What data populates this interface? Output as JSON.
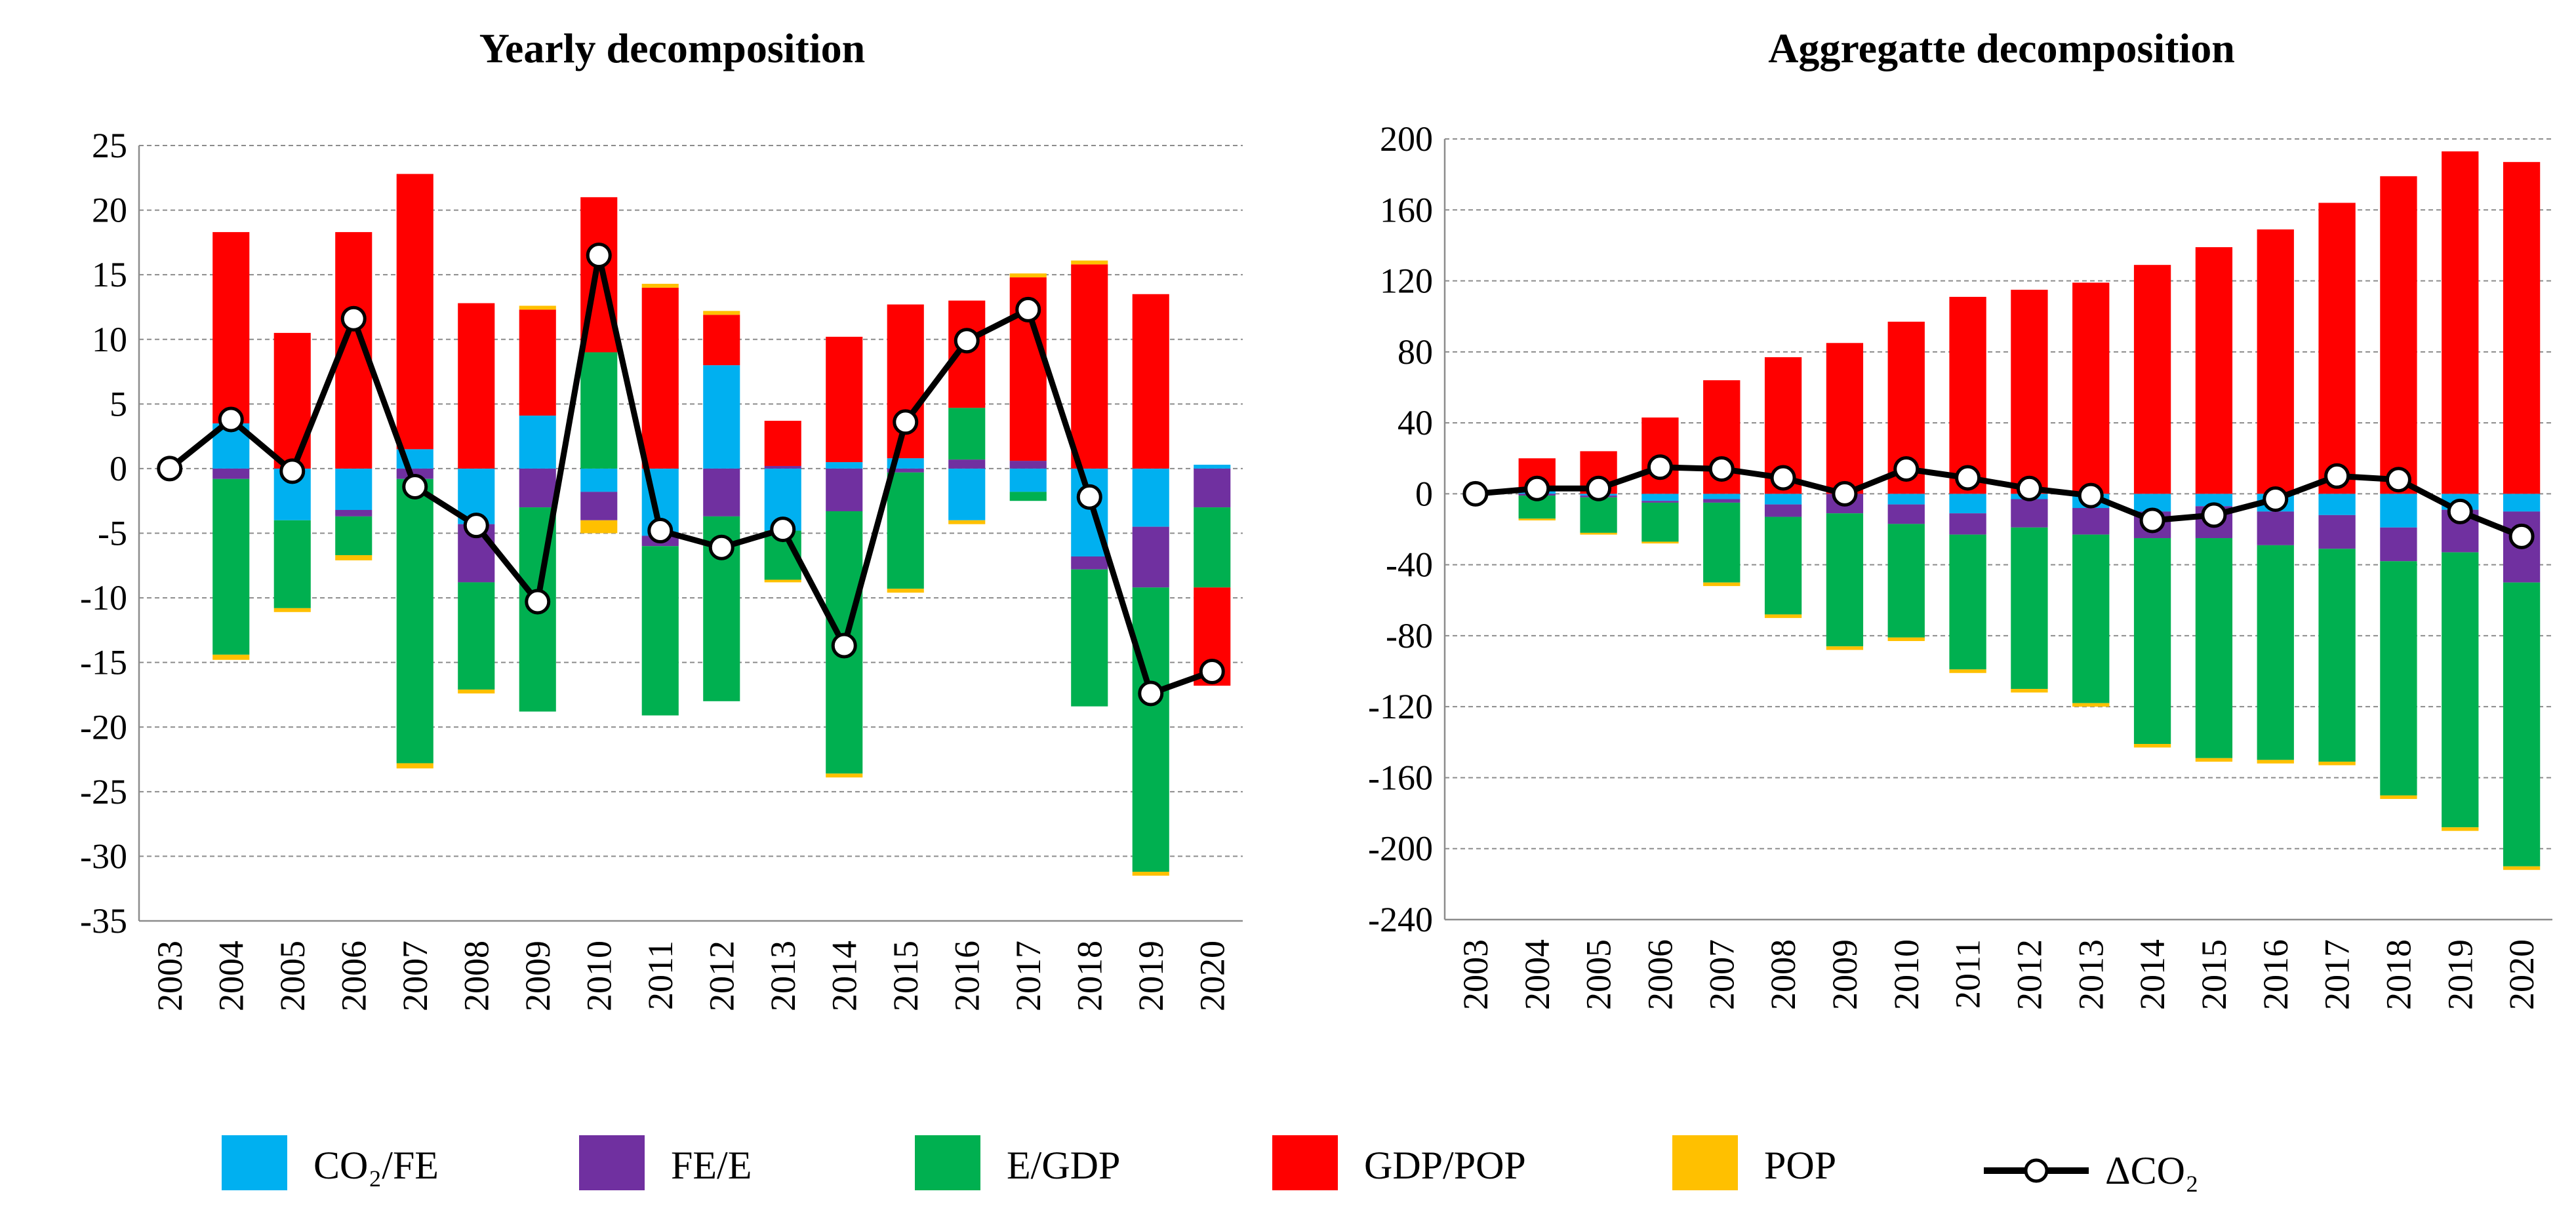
{
  "legend": {
    "items": [
      {
        "key": "co2fe",
        "label": "CO₂/FE",
        "color": "#00B0F0"
      },
      {
        "key": "fee",
        "label": "FE/E",
        "color": "#7030A0"
      },
      {
        "key": "egdp",
        "label": "E/GDP",
        "color": "#00B050"
      },
      {
        "key": "gdppop",
        "label": "GDP/POP",
        "color": "#FF0000"
      },
      {
        "key": "pop",
        "label": "POP",
        "color": "#FFC000"
      },
      {
        "key": "dco2",
        "label": "ΔCO₂",
        "color": "#000000"
      }
    ]
  },
  "chart_data": [
    {
      "type": "bar",
      "stacked": true,
      "title": "Yearly decomposition",
      "xlabel": "",
      "ylabel": "",
      "ylim": [
        -35,
        25
      ],
      "yticks": [
        25,
        20,
        15,
        10,
        5,
        0,
        -5,
        -10,
        -15,
        -20,
        -25,
        -30,
        -35
      ],
      "grid": true,
      "categories": [
        "2003",
        "2004",
        "2005",
        "2006",
        "2007",
        "2008",
        "2009",
        "2010",
        "2011",
        "2012",
        "2013",
        "2014",
        "2015",
        "2016",
        "2017",
        "2018",
        "2019",
        "2020"
      ],
      "series": [
        {
          "name": "CO₂/FE",
          "key": "co2fe",
          "values": [
            0,
            3.5,
            -4,
            -3.2,
            1.5,
            -4.3,
            4.1,
            -1.8,
            -5.2,
            8.0,
            -4.8,
            0.5,
            0.8,
            -4.0,
            -1.8,
            -6.8,
            -4.5,
            0.3
          ]
        },
        {
          "name": "FE/E",
          "key": "fee",
          "values": [
            0,
            -0.8,
            0,
            -0.5,
            -0.8,
            -4.5,
            -3.0,
            -2.2,
            -0.8,
            -3.7,
            0.2,
            -3.3,
            -0.3,
            0.7,
            0.6,
            -1.0,
            -4.7,
            -3.0
          ]
        },
        {
          "name": "E/GDP",
          "key": "egdp",
          "values": [
            0,
            -13.6,
            -6.8,
            -3.0,
            -22.0,
            -8.3,
            -15.8,
            9.0,
            -13.1,
            -14.3,
            -3.8,
            -20.3,
            -9.0,
            4.0,
            -0.7,
            -10.6,
            -22.0,
            -6.2
          ]
        },
        {
          "name": "GDP/POP",
          "key": "gdppop",
          "values": [
            0,
            14.8,
            10.5,
            18.3,
            21.3,
            12.8,
            8.2,
            12.0,
            14.0,
            3.9,
            3.5,
            9.7,
            11.9,
            8.3,
            14.2,
            15.8,
            13.5,
            -7.6
          ]
        },
        {
          "name": "POP",
          "key": "pop",
          "values": [
            0,
            -0.4,
            -0.3,
            -0.4,
            -0.4,
            -0.3,
            0.3,
            -1.0,
            0.3,
            0.3,
            -0.2,
            -0.3,
            -0.3,
            -0.3,
            0.3,
            0.3,
            -0.3,
            0
          ]
        }
      ],
      "line": {
        "name": "ΔCO₂",
        "key": "dco2",
        "values": [
          0,
          3.8,
          -0.2,
          11.6,
          -1.4,
          -4.4,
          -10.3,
          16.5,
          -4.8,
          -6.1,
          -4.7,
          -13.7,
          3.6,
          9.9,
          12.3,
          -2.2,
          -17.4,
          -15.7
        ]
      }
    },
    {
      "type": "bar",
      "stacked": true,
      "title": "Aggregatte decomposition",
      "xlabel": "",
      "ylabel": "",
      "ylim": [
        -240,
        200
      ],
      "yticks": [
        200,
        160,
        120,
        80,
        40,
        0,
        -40,
        -80,
        -120,
        -160,
        -200,
        -240
      ],
      "grid": true,
      "categories": [
        "2003",
        "2004",
        "2005",
        "2006",
        "2007",
        "2008",
        "2009",
        "2010",
        "2011",
        "2012",
        "2013",
        "2014",
        "2015",
        "2016",
        "2017",
        "2018",
        "2019",
        "2020"
      ],
      "series": [
        {
          "name": "CO₂/FE",
          "key": "co2fe",
          "values": [
            0,
            3,
            -1,
            -4,
            -3,
            -6,
            0,
            -6,
            -11,
            -3,
            -8,
            -10,
            -7,
            -10,
            -12,
            -19,
            -9,
            -10
          ]
        },
        {
          "name": "FE/E",
          "key": "fee",
          "values": [
            0,
            -1,
            -1,
            -1,
            -2,
            -7,
            -11,
            -11,
            -12,
            -16,
            -15,
            -15,
            -18,
            -19,
            -19,
            -19,
            -24,
            -40
          ]
        },
        {
          "name": "E/GDP",
          "key": "egdp",
          "values": [
            0,
            -13,
            -20,
            -22,
            -45,
            -55,
            -75,
            -64,
            -76,
            -91,
            -95,
            -116,
            -124,
            -121,
            -120,
            -132,
            -155,
            -160
          ]
        },
        {
          "name": "GDP/POP",
          "key": "gdppop",
          "values": [
            0,
            17,
            24,
            43,
            64,
            77,
            85,
            97,
            111,
            115,
            119,
            129,
            139,
            149,
            164,
            179,
            193,
            187
          ]
        },
        {
          "name": "POP",
          "key": "pop",
          "values": [
            0,
            -1,
            -1,
            -1,
            -2,
            -2,
            -2,
            -2,
            -2,
            -2,
            -2,
            -2,
            -2,
            -2,
            -2,
            -2,
            -2,
            -2
          ]
        }
      ],
      "line": {
        "name": "ΔCO₂",
        "key": "dco2",
        "values": [
          0,
          3,
          3,
          15,
          14,
          9,
          0,
          14,
          9,
          3,
          -1,
          -15,
          -12,
          -3,
          10,
          8,
          -10,
          -24
        ]
      }
    }
  ]
}
